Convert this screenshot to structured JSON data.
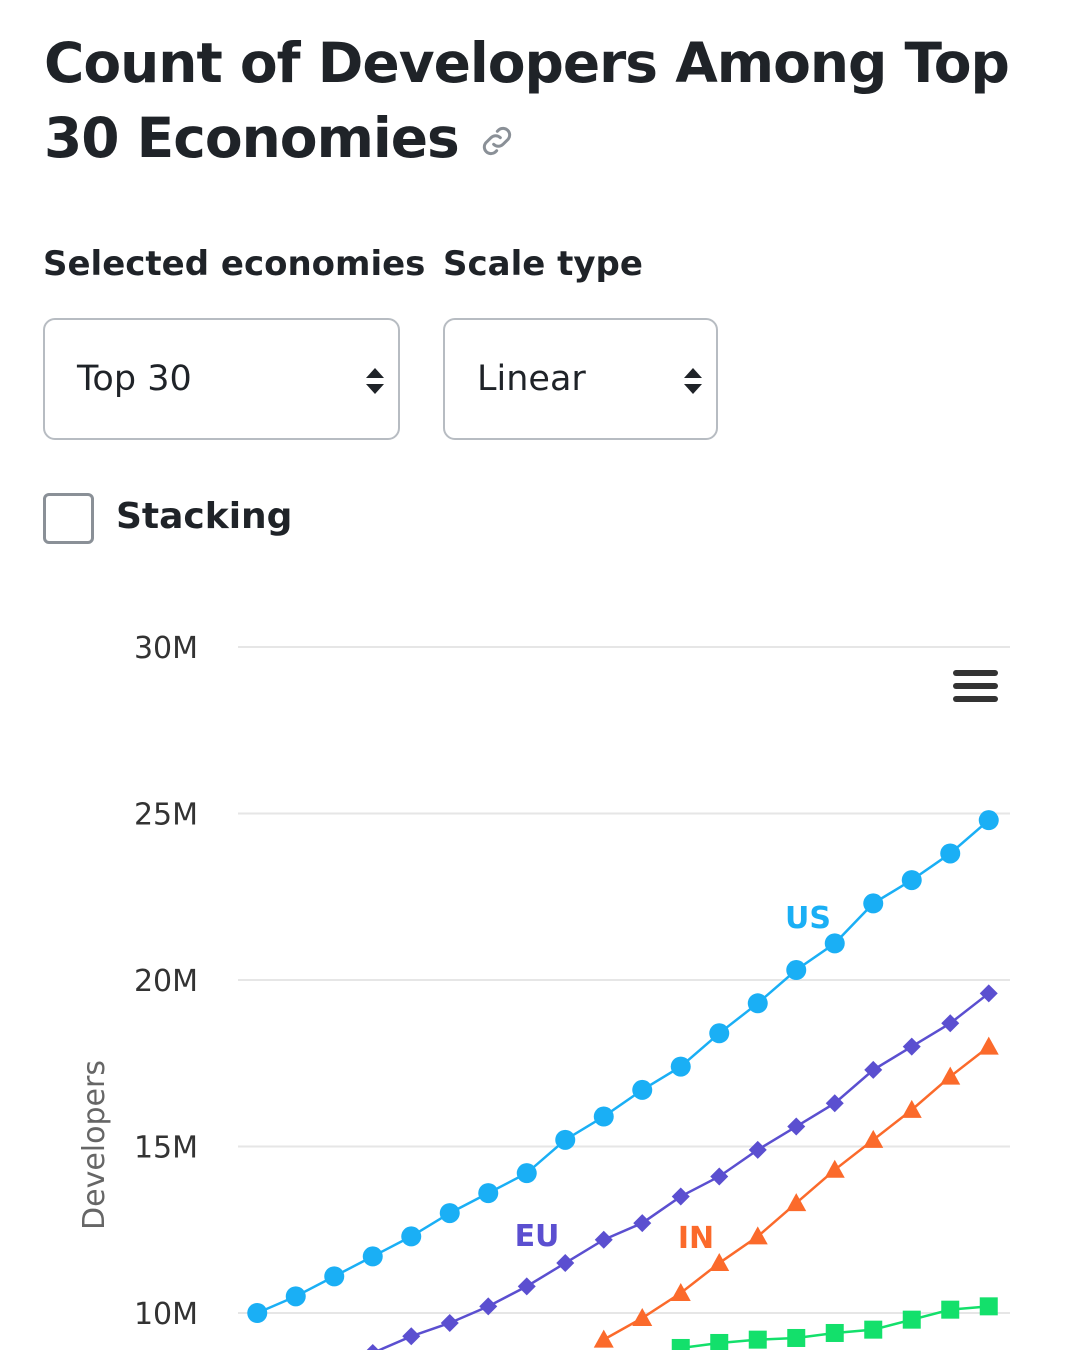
{
  "header": {
    "title": "Count of Developers Among Top 30 Economies"
  },
  "controls": {
    "economies_label": "Selected economies",
    "economies_value": "Top 30",
    "scale_label": "Scale type",
    "scale_value": "Linear",
    "stacking_label": "Stacking"
  },
  "chart_data": {
    "type": "line",
    "ylabel": "Developers",
    "categories": [
      null,
      null,
      null,
      null,
      null,
      null,
      null,
      null,
      null,
      null,
      null,
      null,
      null,
      null,
      null,
      null,
      null,
      null,
      null,
      null
    ],
    "ylim": [
      0,
      30000000
    ],
    "yticks": [
      {
        "value": 10000000,
        "label": "10M"
      },
      {
        "value": 15000000,
        "label": "15M"
      },
      {
        "value": 20000000,
        "label": "20M"
      },
      {
        "value": 25000000,
        "label": "25M"
      },
      {
        "value": 30000000,
        "label": "30M"
      }
    ],
    "grid": true,
    "series": [
      {
        "name": "US",
        "color": "#1aaff5",
        "marker": "circle",
        "values": [
          10000000,
          10500000,
          11100000,
          11700000,
          12300000,
          13000000,
          13600000,
          14200000,
          15200000,
          15900000,
          16700000,
          17400000,
          18400000,
          19300000,
          20300000,
          21100000,
          22300000,
          23000000,
          23800000,
          24800000
        ]
      },
      {
        "name": "EU",
        "color": "#5b4fd0",
        "marker": "diamond",
        "values": [
          null,
          null,
          null,
          8800000,
          9300000,
          9700000,
          10200000,
          10800000,
          11500000,
          12200000,
          12700000,
          13500000,
          14100000,
          14900000,
          15600000,
          16300000,
          17300000,
          18000000,
          18700000,
          19600000
        ]
      },
      {
        "name": "IN",
        "color": "#fb6a2b",
        "marker": "triangle",
        "values": [
          null,
          null,
          null,
          null,
          null,
          null,
          null,
          null,
          null,
          9200000,
          9850000,
          10600000,
          11500000,
          12300000,
          13300000,
          14300000,
          15200000,
          16100000,
          17100000,
          18000000
        ]
      },
      {
        "color": "#13e06b",
        "marker": "square",
        "values": [
          null,
          null,
          null,
          null,
          null,
          null,
          null,
          null,
          null,
          null,
          null,
          8950000,
          9100000,
          9200000,
          9250000,
          9400000,
          9500000,
          9800000,
          10100000,
          10200000
        ]
      }
    ]
  }
}
